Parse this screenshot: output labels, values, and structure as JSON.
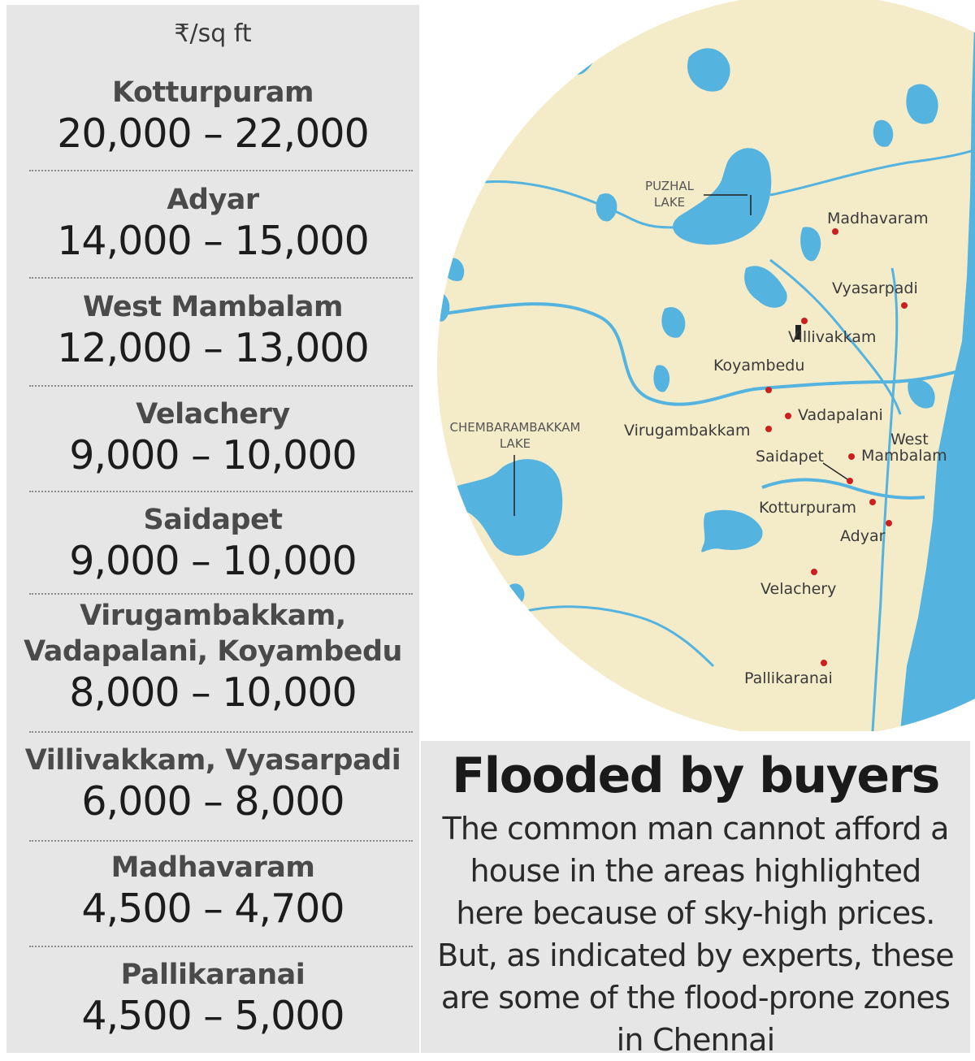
{
  "price_list": {
    "unit": "₹/sq ft",
    "items": [
      {
        "area": "Kotturpuram",
        "price": "20,000 – 22,000"
      },
      {
        "area": "Adyar",
        "price": "14,000 – 15,000"
      },
      {
        "area": "West Mambalam",
        "price": "12,000 – 13,000"
      },
      {
        "area": "Velachery",
        "price": "9,000 – 10,000"
      },
      {
        "area": "Saidapet",
        "price": "9,000 – 10,000"
      },
      {
        "area": "Virugambakkam,",
        "area2": "Vadapalani, Koyambedu",
        "price": "8,000 – 10,000"
      },
      {
        "area": "Villivakkam, Vyasarpadi",
        "price": "6,000 – 8,000"
      },
      {
        "area": "Madhavaram",
        "price": "4,500 – 4,700"
      },
      {
        "area": "Pallikaranai",
        "price": "4,500 – 5,000"
      }
    ]
  },
  "map": {
    "lakes": {
      "puzhal_line1": "PUZHAL",
      "puzhal_line2": "LAKE",
      "chembarambakkam_line1": "CHEMBARAMBAKKAM",
      "chembarambakkam_line2": "LAKE"
    },
    "places": {
      "madhavaram": "Madhavaram",
      "vyasarpadi": "Vyasarpadi",
      "villivakkam": "Villivakkam",
      "koyambedu": "Koyambedu",
      "vadapalani": "Vadapalani",
      "virugambakkam": "Virugambakkam",
      "west": "West",
      "mambalam": "Mambalam",
      "saidapet": "Saidapet",
      "kotturpuram": "Kotturpuram",
      "adyar": "Adyar",
      "velachery": "Velachery",
      "pallikaranai": "Pallikaranai"
    },
    "colors": {
      "land": "#f4ecc8",
      "water": "#55b3e0",
      "marker": "#cc1f1f"
    }
  },
  "text_box": {
    "headline": "Flooded by buyers",
    "body_lines": [
      "The common man cannot afford a",
      "house in the areas highlighted",
      "here because of sky-high prices.",
      "But, as indicated by experts, these",
      "are some of the flood-prone zones",
      "in Chennai"
    ]
  }
}
